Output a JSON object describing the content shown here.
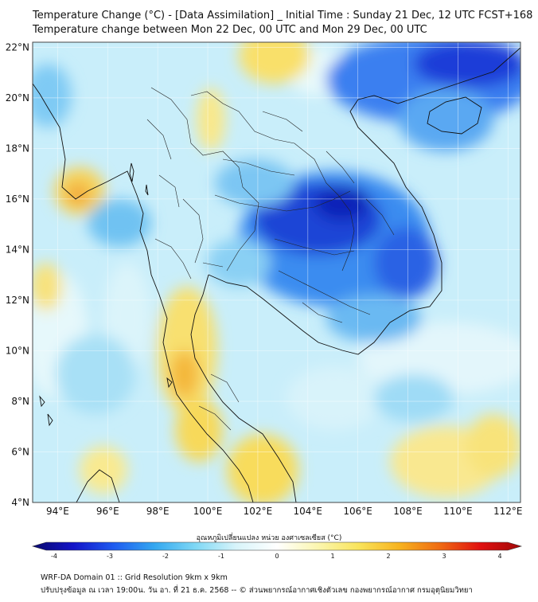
{
  "header": {
    "title_line1": "Temperature Change (°C) - [Data Assimilation] _ Initial Time : Sunday 21 Dec, 12 UTC FCST+168",
    "title_line2": "Temperature change between Mon 22 Dec, 00 UTC and Mon 29 Dec, 00 UTC"
  },
  "map": {
    "lon_range": [
      93,
      112.5
    ],
    "lat_range": [
      4,
      22.2
    ],
    "lat_labels": [
      "4°N",
      "6°N",
      "8°N",
      "10°N",
      "12°N",
      "14°N",
      "16°N",
      "18°N",
      "20°N",
      "22°N"
    ],
    "lon_labels": [
      "94°E",
      "96°E",
      "98°E",
      "100°E",
      "102°E",
      "104°E",
      "106°E",
      "108°E",
      "110°E",
      "112°E"
    ],
    "colors": {
      "frame": "#444444",
      "grid": "#ffffff",
      "coast": "#111111",
      "border": "#222222"
    }
  },
  "colorbar": {
    "label": "อุณหภูมิเปลี่ยนแปลง หน่วย องศาเซลเซียส (°C)",
    "min": -4,
    "max": 4,
    "ticks": [
      "-4",
      "-3",
      "-2",
      "-1",
      "0",
      "1",
      "2",
      "3",
      "4"
    ],
    "color_stops": [
      "#0a0a6e",
      "#1414c8",
      "#1f5cf0",
      "#34a8f0",
      "#7fd8f5",
      "#d8f4fa",
      "#ffffff",
      "#fbf6b0",
      "#f9e45c",
      "#f7b31f",
      "#ef6a12",
      "#e01010",
      "#a00808"
    ]
  },
  "footer": {
    "line1": "WRF-DA Domain 01 :: Grid Resolution 9km x 9km",
    "line2": "ปรับปรุงข้อมูล ณ เวลา 19:00น. วัน อา. ที่ 21 ธ.ค. 2568 -- © ส่วนพยากรณ์อากาศเชิงตัวเลข กองพยากรณ์อากาศ กรมอุตุนิยมวิทยา"
  }
}
